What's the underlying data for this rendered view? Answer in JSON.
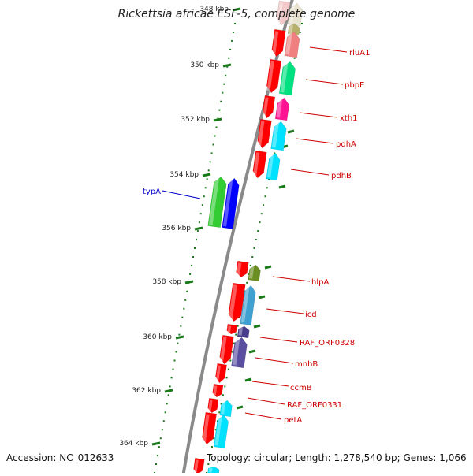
{
  "title": "Rickettsia africae ESF-5, complete genome",
  "footer": {
    "accession": "Accession: NC_012633",
    "topology": "Topology: circular; Length: 1,278,540 bp; Genes: 1,066"
  },
  "colors": {
    "backbone": "#8a8a8a",
    "tick": "#1a7a1a",
    "label_red": "#cc0000",
    "label_blue": "#0000cc"
  },
  "kbp_labels": [
    "348 kbp",
    "350 kbp",
    "352 kbp",
    "354 kbp",
    "356 kbp",
    "358 kbp",
    "360 kbp",
    "362 kbp",
    "364 kbp"
  ],
  "gene_labels": [
    {
      "text": "rluA1",
      "color": "red"
    },
    {
      "text": "pbpE",
      "color": "red"
    },
    {
      "text": "xth1",
      "color": "red"
    },
    {
      "text": "pdhA",
      "color": "red"
    },
    {
      "text": "pdhB",
      "color": "red"
    },
    {
      "text": "typA",
      "color": "blue"
    },
    {
      "text": "hlpA",
      "color": "red"
    },
    {
      "text": "icd",
      "color": "red"
    },
    {
      "text": "RAF_ORF0328",
      "color": "red"
    },
    {
      "text": "mnhB",
      "color": "red"
    },
    {
      "text": "ccmB",
      "color": "red"
    },
    {
      "text": "RAF_ORF0331",
      "color": "red"
    },
    {
      "text": "petA",
      "color": "red"
    }
  ]
}
